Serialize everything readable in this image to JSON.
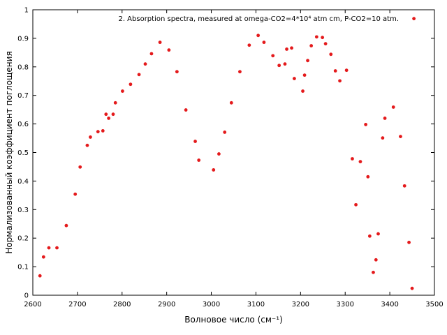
{
  "chart_data": {
    "type": "scatter",
    "legend_text": "2. Absorption spectra, measured at omega-CO2=4*10⁴ atm cm, P-CO2=10 atm.",
    "legend_placement": "top-right",
    "xlabel": "Волновое число (см⁻¹)",
    "ylabel": "Нормализованный коэффициент поглощения",
    "xlim": [
      2600,
      3500
    ],
    "ylim": [
      0,
      1
    ],
    "xticks": [
      2600,
      2700,
      2800,
      2900,
      3000,
      3100,
      3200,
      3300,
      3400,
      3500
    ],
    "yticks": [
      0,
      0.1,
      0.2,
      0.3,
      0.4,
      0.5,
      0.6,
      0.7,
      0.8,
      0.9,
      1
    ],
    "grid": false,
    "color": "#e41a1c",
    "series": [
      {
        "points": [
          [
            2616,
            0.068
          ],
          [
            2624,
            0.134
          ],
          [
            2636,
            0.166
          ],
          [
            2654,
            0.166
          ],
          [
            2675,
            0.244
          ],
          [
            2695,
            0.354
          ],
          [
            2706,
            0.449
          ],
          [
            2722,
            0.525
          ],
          [
            2729,
            0.554
          ],
          [
            2746,
            0.573
          ],
          [
            2757,
            0.576
          ],
          [
            2764,
            0.634
          ],
          [
            2770,
            0.62
          ],
          [
            2780,
            0.634
          ],
          [
            2785,
            0.674
          ],
          [
            2801,
            0.715
          ],
          [
            2819,
            0.739
          ],
          [
            2838,
            0.773
          ],
          [
            2852,
            0.81
          ],
          [
            2866,
            0.846
          ],
          [
            2885,
            0.886
          ],
          [
            2905,
            0.859
          ],
          [
            2923,
            0.783
          ],
          [
            2943,
            0.649
          ],
          [
            2964,
            0.539
          ],
          [
            2972,
            0.473
          ],
          [
            3005,
            0.439
          ],
          [
            3017,
            0.495
          ],
          [
            3030,
            0.571
          ],
          [
            3045,
            0.674
          ],
          [
            3064,
            0.783
          ],
          [
            3085,
            0.876
          ],
          [
            3105,
            0.91
          ],
          [
            3118,
            0.886
          ],
          [
            3138,
            0.839
          ],
          [
            3152,
            0.805
          ],
          [
            3165,
            0.81
          ],
          [
            3169,
            0.862
          ],
          [
            3180,
            0.866
          ],
          [
            3186,
            0.759
          ],
          [
            3205,
            0.715
          ],
          [
            3209,
            0.771
          ],
          [
            3216,
            0.822
          ],
          [
            3224,
            0.874
          ],
          [
            3236,
            0.905
          ],
          [
            3249,
            0.903
          ],
          [
            3256,
            0.881
          ],
          [
            3268,
            0.844
          ],
          [
            3278,
            0.786
          ],
          [
            3288,
            0.751
          ],
          [
            3303,
            0.788
          ],
          [
            3316,
            0.478
          ],
          [
            3324,
            0.317
          ],
          [
            3334,
            0.468
          ],
          [
            3346,
            0.598
          ],
          [
            3351,
            0.415
          ],
          [
            3355,
            0.207
          ],
          [
            3363,
            0.08
          ],
          [
            3369,
            0.124
          ],
          [
            3374,
            0.215
          ],
          [
            3384,
            0.551
          ],
          [
            3389,
            0.62
          ],
          [
            3408,
            0.659
          ],
          [
            3424,
            0.556
          ],
          [
            3433,
            0.383
          ],
          [
            3443,
            0.185
          ],
          [
            3450,
            0.024
          ],
          [
            3454,
            0.969
          ]
        ]
      }
    ]
  }
}
